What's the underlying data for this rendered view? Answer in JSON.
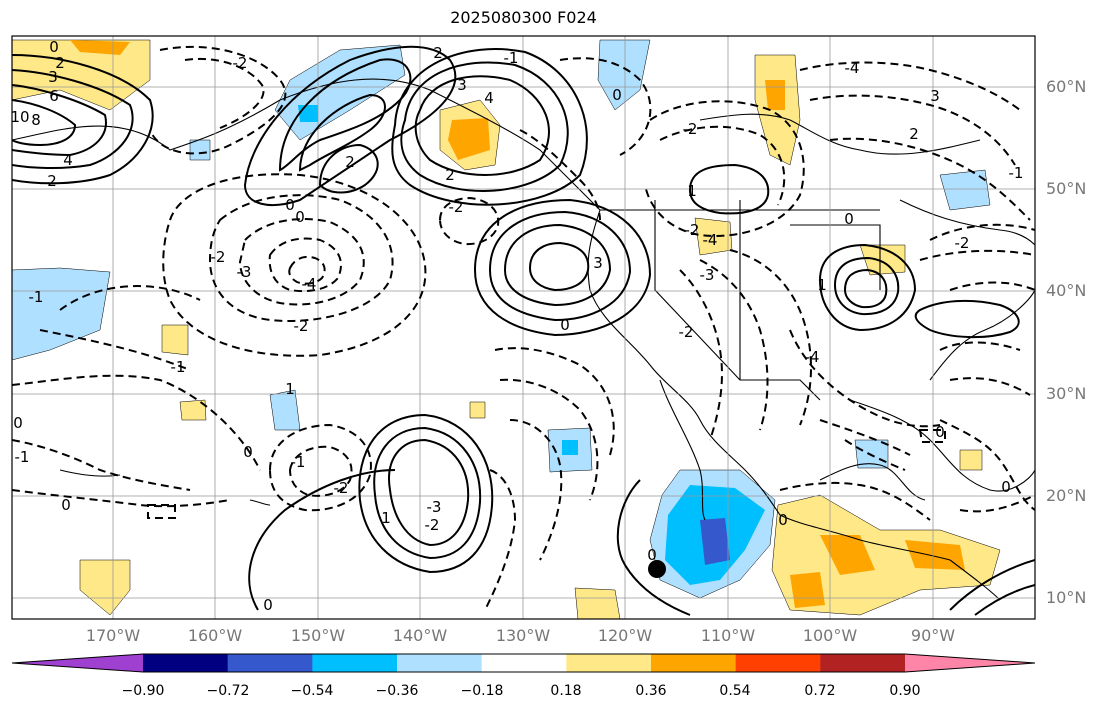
{
  "title": "2025080300 F024",
  "map": {
    "region": "Eastern North Pacific / North America",
    "lat_labels": [
      "60°N",
      "50°N",
      "40°N",
      "30°N",
      "20°N",
      "10°N"
    ],
    "lon_labels": [
      "170°W",
      "160°W",
      "150°W",
      "140°W",
      "130°W",
      "120°W",
      "110°W",
      "100°W",
      "90°W"
    ],
    "gridlines": true,
    "marker": "black-dot",
    "contour_labels": [
      "0",
      "2",
      "3",
      "6",
      "10",
      "8",
      "4",
      "2",
      "-2",
      "2",
      "3",
      "-4",
      "2",
      "-1",
      "2",
      "3",
      "4",
      "2",
      "-2",
      "0",
      "0",
      "-2",
      "-3",
      "-4",
      "-2",
      "-1",
      "3",
      "0",
      "-2",
      "1",
      "1",
      "0",
      "-2",
      "-3",
      "-4",
      "-1",
      "1",
      "0",
      "0",
      "-1",
      "0",
      "-2",
      "-1",
      "0",
      "-3",
      "-2",
      "1",
      "0",
      "-2",
      "0",
      "0",
      "0",
      "-1",
      "-2",
      "-4",
      "0"
    ]
  },
  "colorbar": {
    "ticks": [
      "−0.90",
      "−0.72",
      "−0.54",
      "−0.36",
      "−0.18",
      "0.18",
      "0.36",
      "0.54",
      "0.72",
      "0.90"
    ],
    "colors": [
      "#a040d0",
      "#000080",
      "#3558cc",
      "#00bfff",
      "#b0e0ff",
      "#ffffff",
      "#ffe888",
      "#ffa500",
      "#ff4000",
      "#b22222",
      "#ff85a8"
    ]
  }
}
